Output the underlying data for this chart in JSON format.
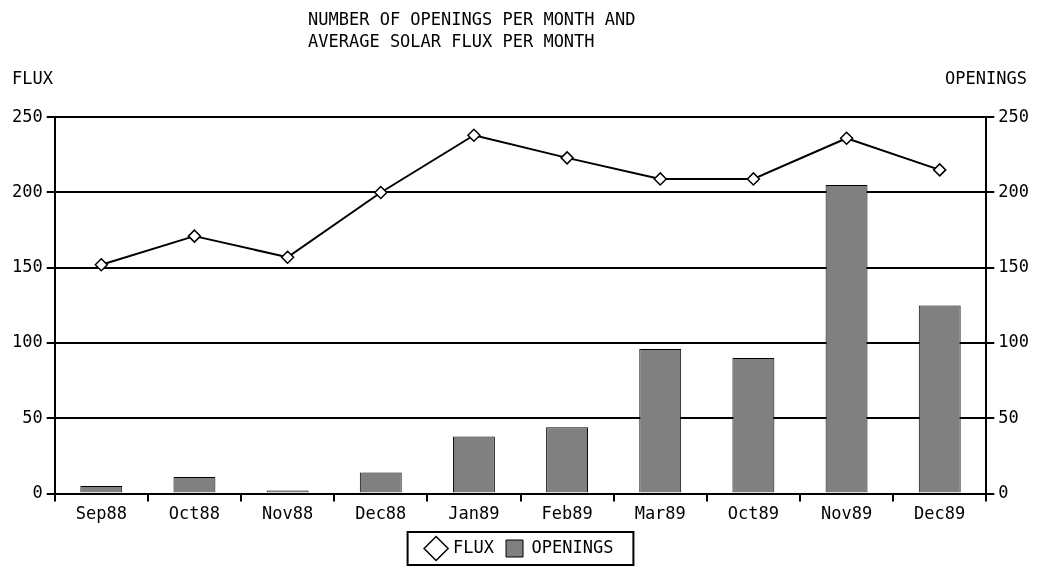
{
  "chart_data": {
    "type": "bar",
    "title": "NUMBER OF OPENINGS PER MONTH AND\nAVERAGE SOLAR FLUX PER MONTH",
    "ylabel": "FLUX",
    "y2label": "OPENINGS",
    "categories": [
      "Sep88",
      "Oct88",
      "Nov88",
      "Dec88",
      "Jan89",
      "Feb89",
      "Mar89",
      "Oct89",
      "Nov89",
      "Dec89"
    ],
    "series": [
      {
        "name": "FLUX",
        "type": "line",
        "color": "#000000",
        "marker": "diamond",
        "values": [
          152,
          171,
          157,
          200,
          238,
          223,
          209,
          209,
          236,
          215
        ]
      },
      {
        "name": "OPENINGS",
        "axis": "y2",
        "color": "#808080",
        "values": [
          5,
          11,
          2,
          14,
          38,
          44,
          96,
          90,
          205,
          125
        ]
      }
    ],
    "ylim": [
      0,
      250
    ],
    "yticks": [
      0,
      50,
      100,
      150,
      200,
      250
    ],
    "y2lim": [
      0,
      250
    ],
    "y2ticks": [
      0,
      50,
      100,
      150,
      200,
      250
    ],
    "grid": "y",
    "legend": "bottom"
  }
}
